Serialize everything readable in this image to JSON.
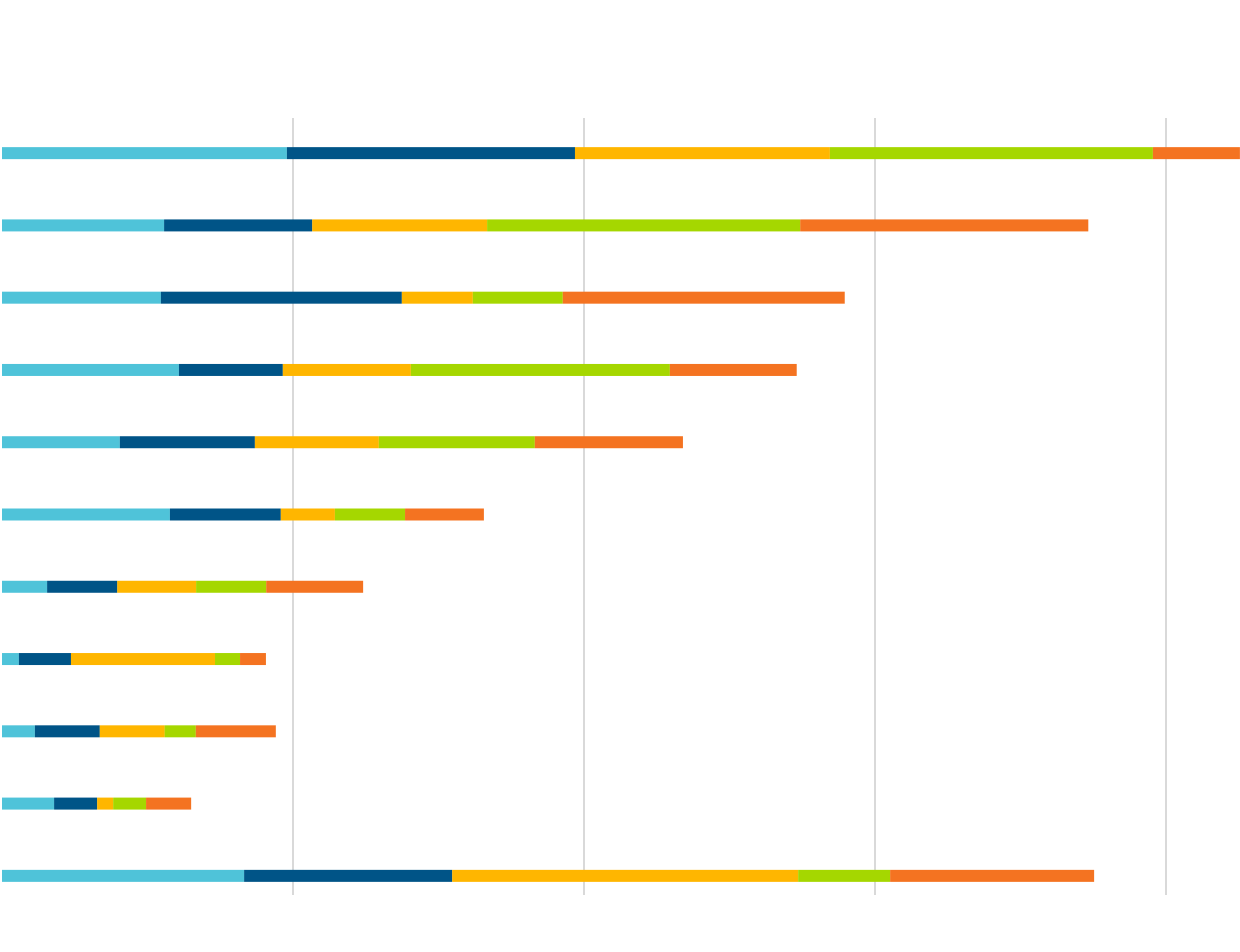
{
  "chart_data": {
    "type": "bar_stacked_horizontal",
    "categories": [
      null,
      null,
      null,
      null,
      null,
      null,
      null,
      null,
      null,
      null,
      null
    ],
    "series": [
      {
        "color": "#4fc3d9",
        "values": [
          9.79,
          5.57,
          5.46,
          6.08,
          4.05,
          5.77,
          1.55,
          0.58,
          1.13,
          1.79,
          8.32
        ]
      },
      {
        "color": "#005487",
        "values": [
          9.9,
          5.09,
          8.28,
          3.57,
          4.64,
          3.81,
          2.41,
          1.79,
          2.23,
          1.48,
          7.15
        ]
      },
      {
        "color": "#ffb600",
        "values": [
          8.76,
          6.01,
          2.44,
          4.4,
          4.26,
          1.86,
          2.71,
          4.95,
          2.23,
          0.55,
          11.89
        ]
      },
      {
        "color": "#a5d700",
        "values": [
          11.1,
          10.76,
          3.09,
          8.9,
          5.36,
          2.41,
          2.41,
          0.86,
          1.07,
          1.13,
          3.16
        ]
      },
      {
        "color": "#f47321",
        "values": [
          2.99,
          9.9,
          9.69,
          4.36,
          5.09,
          2.71,
          3.33,
          0.89,
          2.75,
          1.55,
          7.01
        ]
      }
    ],
    "xlim": [
      0,
      42.5
    ],
    "xticks": [
      10,
      20,
      30,
      40
    ],
    "grid": true
  }
}
